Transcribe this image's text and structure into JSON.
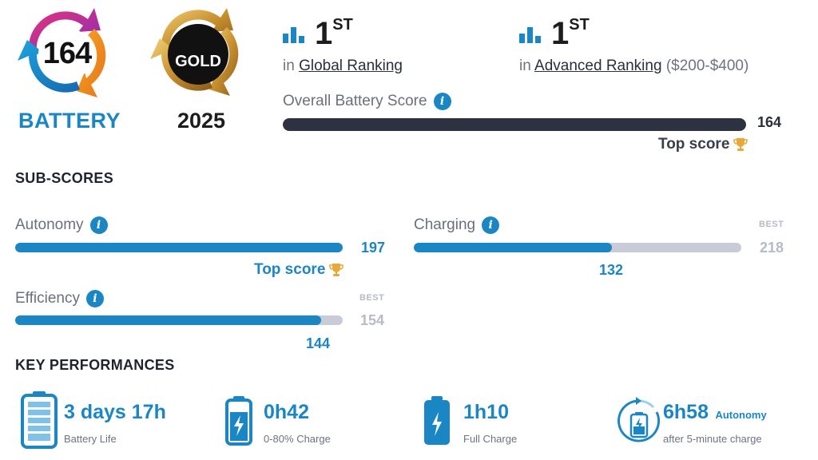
{
  "badges": {
    "score_value": "164",
    "score_label": "BATTERY",
    "award_text": "GOLD",
    "award_year": "2025"
  },
  "rankings": [
    {
      "rank": "1",
      "suffix": "ST",
      "prefix": "in",
      "link": "Global Ranking",
      "extra": ""
    },
    {
      "rank": "1",
      "suffix": "ST",
      "prefix": "in",
      "link": "Advanced Ranking",
      "extra": "($200-$400)"
    }
  ],
  "overall": {
    "label": "Overall Battery Score",
    "value": "164",
    "fill_fraction": 1.0,
    "top_label": "Top score"
  },
  "subscores": {
    "title": "SUB-SCORES",
    "items": [
      {
        "label": "Autonomy",
        "value": "197",
        "best": "",
        "best_tag": "",
        "fill_fraction": 1.0,
        "top_label": "Top score"
      },
      {
        "label": "Charging",
        "value": "132",
        "best": "218",
        "best_tag": "BEST",
        "fill_fraction": 0.606,
        "top_label": ""
      },
      {
        "label": "Efficiency",
        "value": "144",
        "best": "154",
        "best_tag": "BEST",
        "fill_fraction": 0.935,
        "top_label": ""
      }
    ]
  },
  "key_performances": {
    "title": "KEY PERFORMANCES",
    "items": [
      {
        "icon": "battery-full-icon",
        "value": "3 days 17h",
        "extra": "",
        "desc": "Battery Life"
      },
      {
        "icon": "battery-charge-icon",
        "value": "0h42",
        "extra": "",
        "desc": "0-80% Charge"
      },
      {
        "icon": "battery-bolt-icon",
        "value": "1h10",
        "extra": "",
        "desc": "Full Charge"
      },
      {
        "icon": "battery-cycle-icon",
        "value": "6h58",
        "extra": "Autonomy",
        "desc": "after 5-minute charge"
      }
    ]
  },
  "colors": {
    "accent_blue": "#1a86c4",
    "dark_bar": "#2e3140",
    "track_gray": "#c9ccd8",
    "gold": "#c99a3a",
    "trophy": "#e9a83a"
  }
}
